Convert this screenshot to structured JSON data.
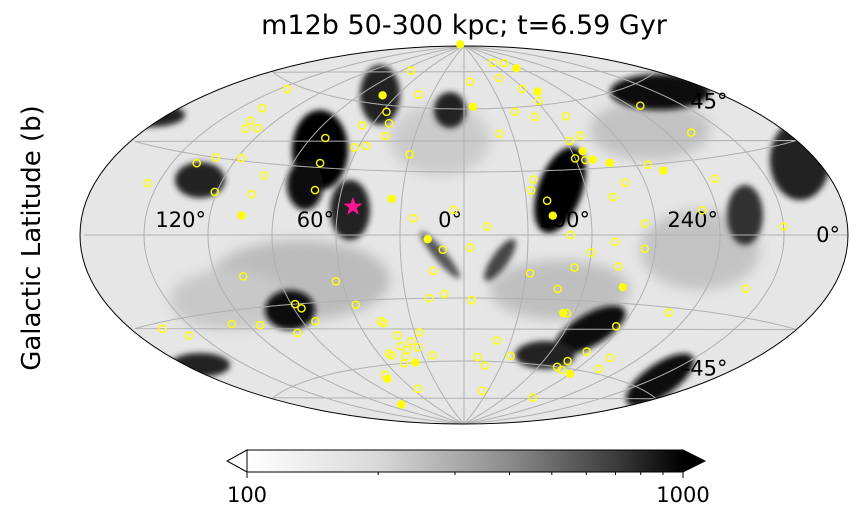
{
  "chart_data": {
    "type": "heatmap",
    "projection": "aitoff",
    "title": "m12b 50-300 kpc; t=6.59 Gyr",
    "ylabel": "Galactic Latitude (b)",
    "xlabel": "",
    "lat_ticks": [
      {
        "value": 45,
        "label": "45°"
      },
      {
        "value": 0,
        "label": "0°"
      },
      {
        "value": -45,
        "label": "-45°"
      }
    ],
    "lon_ticks": [
      {
        "value": 120,
        "label": "120°"
      },
      {
        "value": 60,
        "label": "60°"
      },
      {
        "value": 0,
        "label": "0°"
      },
      {
        "value": 300,
        "label": "300°"
      },
      {
        "value": 240,
        "label": "240°"
      }
    ],
    "grid": true,
    "colorbar": {
      "scale": "log",
      "range": [
        100,
        1000
      ],
      "extend": "both",
      "tick_labels": [
        {
          "value": 100,
          "label": "100"
        },
        {
          "value": 1000,
          "label": "1000"
        }
      ],
      "colormap": "Greys"
    },
    "colors": {
      "open_marker": "#ffff00",
      "filled_marker": "#ffff00",
      "star_marker": "#ff1493",
      "grid": "#b0b0b0"
    },
    "open_satellites": [
      [
        -150,
        3
      ],
      [
        -139,
        -20
      ],
      [
        -125,
        22
      ],
      [
        -133,
        40
      ],
      [
        -126,
        53
      ],
      [
        -109,
        -32
      ],
      [
        -105,
        -58
      ],
      [
        -102,
        -53
      ],
      [
        -93,
        -74
      ],
      [
        -113,
        10
      ],
      [
        -96,
        30
      ],
      [
        -85,
        5
      ],
      [
        -85,
        -6
      ],
      [
        -83,
        -52
      ],
      [
        -80,
        -61
      ],
      [
        -71,
        -3
      ],
      [
        -74,
        -14
      ],
      [
        -71,
        54
      ],
      [
        -72,
        17
      ],
      [
        -77,
        -57
      ],
      [
        -74,
        -60
      ],
      [
        -60,
        -8
      ],
      [
        -56,
        -36
      ],
      [
        -53,
        -15
      ],
      [
        -50,
        0
      ],
      [
        -47,
        -25
      ],
      [
        -32,
        -18
      ],
      [
        -34,
        -57
      ],
      [
        -23,
        -74
      ],
      [
        -17,
        -62
      ],
      [
        -7,
        73
      ],
      [
        -4,
        -31
      ],
      [
        -3,
        -6
      ],
      [
        -10,
        -58
      ],
      [
        -33,
        21
      ],
      [
        -35,
        26
      ],
      [
        -40,
        16
      ],
      [
        -21,
        -50
      ],
      [
        -50,
        55
      ],
      [
        -62,
        62
      ],
      [
        -82,
        80
      ],
      [
        -58,
        68
      ],
      [
        -63,
        81
      ],
      [
        -38,
        58
      ],
      [
        -11,
        4
      ],
      [
        -45,
        74
      ],
      [
        -22,
        48
      ],
      [
        -70,
        45
      ],
      [
        -62,
        43
      ],
      [
        -80,
        23
      ],
      [
        -65,
        34
      ],
      [
        -60,
        35
      ],
      [
        -87,
        -40
      ],
      [
        5,
        12
      ],
      [
        10,
        -7
      ],
      [
        15,
        -17
      ],
      [
        10,
        -28
      ],
      [
        18,
        -30
      ],
      [
        23,
        -57
      ],
      [
        27,
        -46
      ],
      [
        34,
        -50
      ],
      [
        30,
        38
      ],
      [
        24,
        8
      ],
      [
        41,
        -47
      ],
      [
        43,
        -57
      ],
      [
        47,
        -40
      ],
      [
        46,
        -41
      ],
      [
        39,
        -54
      ],
      [
        42,
        -52
      ],
      [
        31,
        -53
      ],
      [
        42,
        66
      ],
      [
        48,
        46
      ],
      [
        47,
        -60
      ],
      [
        52,
        -56
      ],
      [
        53,
        -55
      ],
      [
        54,
        -72
      ],
      [
        56,
        41
      ],
      [
        63,
        -21
      ],
      [
        50,
        52
      ],
      [
        57,
        57
      ],
      [
        62,
        40
      ],
      [
        66,
        50
      ],
      [
        70,
        -64
      ],
      [
        73,
        20
      ],
      [
        76,
        32
      ],
      [
        82,
        43
      ],
      [
        79,
        76
      ],
      [
        83,
        -38
      ],
      [
        86,
        -32
      ],
      [
        101,
        25
      ],
      [
        103,
        17
      ],
      [
        98,
        -42
      ],
      [
        107,
        -17
      ],
      [
        114,
        -37
      ],
      [
        118,
        31
      ],
      [
        121,
        17
      ],
      [
        125,
        43
      ],
      [
        128,
        -35
      ],
      [
        131,
        42
      ],
      [
        131,
        30
      ],
      [
        134,
        45
      ],
      [
        138,
        27
      ],
      [
        138,
        50
      ],
      [
        145,
        58
      ],
      [
        155,
        18
      ],
      [
        165,
        -32
      ],
      [
        156,
        -36
      ],
      [
        88,
        -30
      ],
      [
        57,
        -32
      ]
    ],
    "filled_satellites": [
      [
        -84,
        77
      ],
      [
        -66,
        38
      ],
      [
        -69,
        34
      ],
      [
        -77,
        32
      ],
      [
        -102,
        27
      ],
      [
        -42,
        9
      ],
      [
        -54,
        -36
      ],
      [
        -79,
        -23
      ],
      [
        -90,
        -62
      ],
      [
        -69,
        66
      ],
      [
        -69,
        91
      ],
      [
        -7,
        61
      ],
      [
        17,
        -2
      ],
      [
        35,
        17
      ],
      [
        38,
        -60
      ],
      [
        72,
        -66
      ],
      [
        72,
        64
      ],
      [
        104,
        -77
      ],
      [
        105,
        8
      ]
    ],
    "star_marker": [
      53,
      13
    ]
  }
}
